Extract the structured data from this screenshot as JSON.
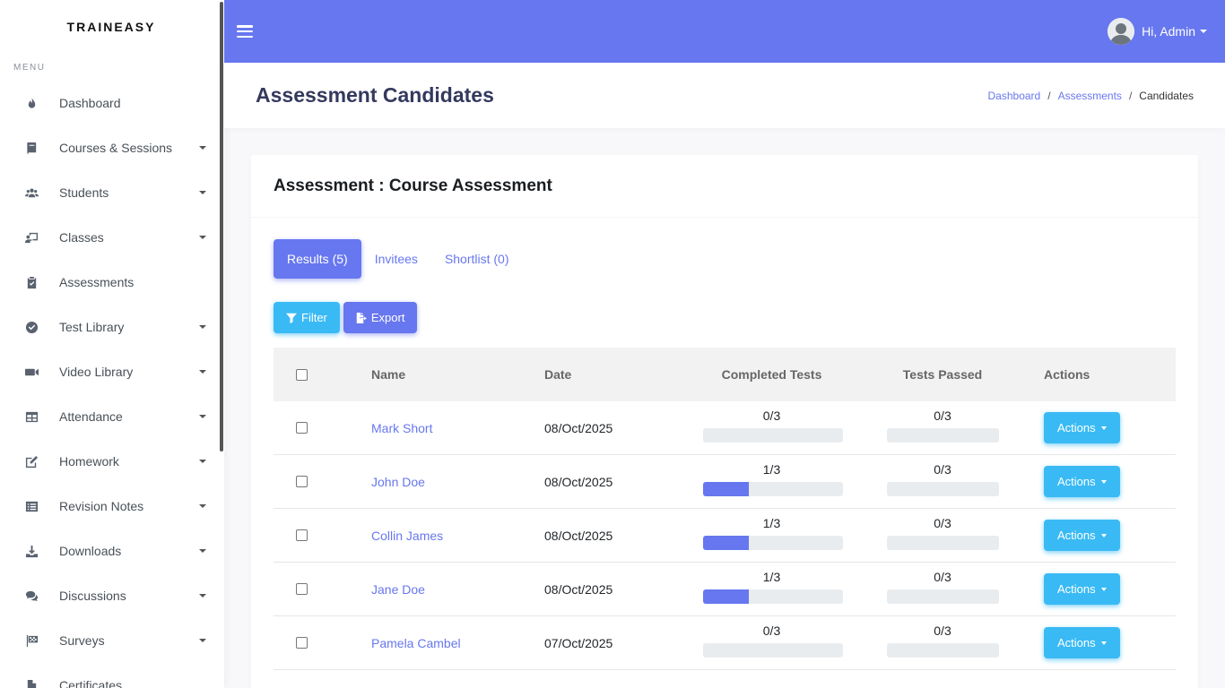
{
  "brand": "TRAINEASY",
  "sidebar": {
    "menu_label": "MENU",
    "items": [
      {
        "label": "Dashboard",
        "icon": "fire-icon",
        "has_caret": false
      },
      {
        "label": "Courses & Sessions",
        "icon": "book-icon",
        "has_caret": true
      },
      {
        "label": "Students",
        "icon": "users-icon",
        "has_caret": true
      },
      {
        "label": "Classes",
        "icon": "chalkboard-teacher-icon",
        "has_caret": true
      },
      {
        "label": "Assessments",
        "icon": "clipboard-check-icon",
        "has_caret": false
      },
      {
        "label": "Test Library",
        "icon": "check-circle-icon",
        "has_caret": true
      },
      {
        "label": "Video Library",
        "icon": "video-icon",
        "has_caret": true
      },
      {
        "label": "Attendance",
        "icon": "table-icon",
        "has_caret": true
      },
      {
        "label": "Homework",
        "icon": "edit-icon",
        "has_caret": true
      },
      {
        "label": "Revision Notes",
        "icon": "list-alt-icon",
        "has_caret": true
      },
      {
        "label": "Downloads",
        "icon": "download-icon",
        "has_caret": true
      },
      {
        "label": "Discussions",
        "icon": "comments-icon",
        "has_caret": true
      },
      {
        "label": "Surveys",
        "icon": "flag-checkered-icon",
        "has_caret": true
      },
      {
        "label": "Certificates",
        "icon": "file-icon",
        "has_caret": false
      }
    ]
  },
  "topbar": {
    "user_greeting": "Hi, Admin",
    "accent_color": "#6777ef"
  },
  "page": {
    "title": "Assessment Candidates",
    "breadcrumb": [
      "Dashboard",
      "Assessments",
      "Candidates"
    ]
  },
  "card": {
    "title": "Assessment : Course Assessment",
    "tabs": [
      "Results (5)",
      "Invitees",
      "Shortlist (0)"
    ],
    "filter_label": "Filter",
    "export_label": "Export"
  },
  "table": {
    "headers": {
      "name": "Name",
      "date": "Date",
      "completed": "Completed Tests",
      "passed": "Tests Passed",
      "actions": "Actions"
    },
    "rows": [
      {
        "name": "Mark Short",
        "date": "08/Oct/2025",
        "completed": "0/3",
        "completed_pct": 0,
        "passed": "0/3",
        "passed_pct": 0,
        "action": "Actions"
      },
      {
        "name": "John Doe",
        "date": "08/Oct/2025",
        "completed": "1/3",
        "completed_pct": 33.33,
        "passed": "0/3",
        "passed_pct": 0,
        "action": "Actions"
      },
      {
        "name": "Collin James",
        "date": "08/Oct/2025",
        "completed": "1/3",
        "completed_pct": 33.33,
        "passed": "0/3",
        "passed_pct": 0,
        "action": "Actions"
      },
      {
        "name": "Jane Doe",
        "date": "08/Oct/2025",
        "completed": "1/3",
        "completed_pct": 33.33,
        "passed": "0/3",
        "passed_pct": 0,
        "action": "Actions"
      },
      {
        "name": "Pamela Cambel",
        "date": "07/Oct/2025",
        "completed": "0/3",
        "completed_pct": 0,
        "passed": "0/3",
        "passed_pct": 0,
        "action": "Actions"
      }
    ]
  }
}
